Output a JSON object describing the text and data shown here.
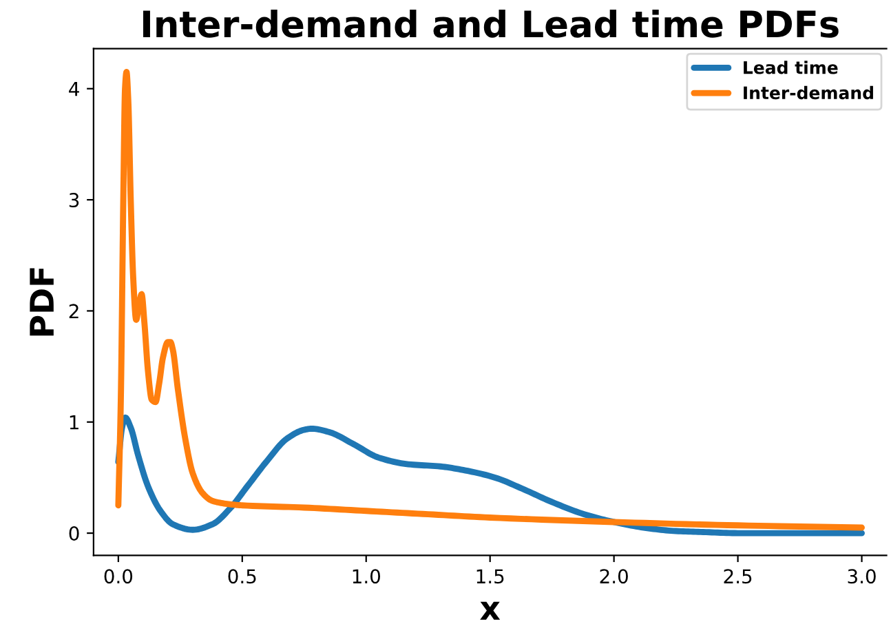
{
  "chart_data": {
    "type": "line",
    "title": "Inter-demand and Lead time PDFs",
    "xlabel": "x",
    "ylabel": "PDF",
    "xlim": [
      -0.1,
      3.1
    ],
    "ylim": [
      -0.2,
      4.36
    ],
    "xticks": [
      {
        "value": 0,
        "label": "0.0"
      },
      0.5,
      {
        "value": 1,
        "label": "1.0"
      },
      1.5,
      {
        "value": 2,
        "label": "2.0"
      },
      2.5,
      {
        "value": 3,
        "label": "3.0"
      }
    ],
    "yticks": [
      0,
      1,
      2,
      3,
      4
    ],
    "grid": false,
    "legend": "top right",
    "marker": "none",
    "line_style": "solid",
    "series": [
      {
        "name": "Lead time",
        "color": "#1f77b4",
        "x": [
          0,
          0.015,
          0.028,
          0.05,
          0.08,
          0.12,
          0.17,
          0.22,
          0.3,
          0.38,
          0.45,
          0.52,
          0.6,
          0.68,
          0.75,
          0.78,
          0.85,
          0.95,
          1.05,
          1.17,
          1.3,
          1.41,
          1.52,
          1.63,
          1.75,
          1.88,
          2.0,
          2.12,
          2.24,
          2.36,
          2.5,
          2.7,
          3.0
        ],
        "values": [
          0.64,
          0.95,
          1.04,
          0.95,
          0.7,
          0.42,
          0.2,
          0.08,
          0.03,
          0.08,
          0.22,
          0.42,
          0.65,
          0.85,
          0.93,
          0.94,
          0.91,
          0.8,
          0.68,
          0.62,
          0.6,
          0.56,
          0.5,
          0.4,
          0.28,
          0.17,
          0.1,
          0.05,
          0.02,
          0.01,
          0.0,
          0.0,
          0.0
        ]
      },
      {
        "name": "Inter-demand",
        "color": "#ff7f0e",
        "x": [
          0,
          0.01,
          0.02,
          0.027,
          0.033,
          0.04,
          0.05,
          0.06,
          0.072,
          0.083,
          0.094,
          0.105,
          0.12,
          0.135,
          0.15,
          0.165,
          0.18,
          0.2,
          0.21,
          0.22,
          0.24,
          0.27,
          0.3,
          0.34,
          0.38,
          0.45,
          0.5,
          0.75,
          1.0,
          1.25,
          1.5,
          2.0,
          2.5,
          3.0
        ],
        "values": [
          0.25,
          1.2,
          3.0,
          4.0,
          4.15,
          3.9,
          3.0,
          2.3,
          1.92,
          2.05,
          2.15,
          1.9,
          1.45,
          1.2,
          1.18,
          1.35,
          1.58,
          1.72,
          1.72,
          1.65,
          1.3,
          0.85,
          0.54,
          0.36,
          0.29,
          0.26,
          0.25,
          0.23,
          0.2,
          0.17,
          0.14,
          0.1,
          0.07,
          0.05
        ]
      }
    ]
  }
}
